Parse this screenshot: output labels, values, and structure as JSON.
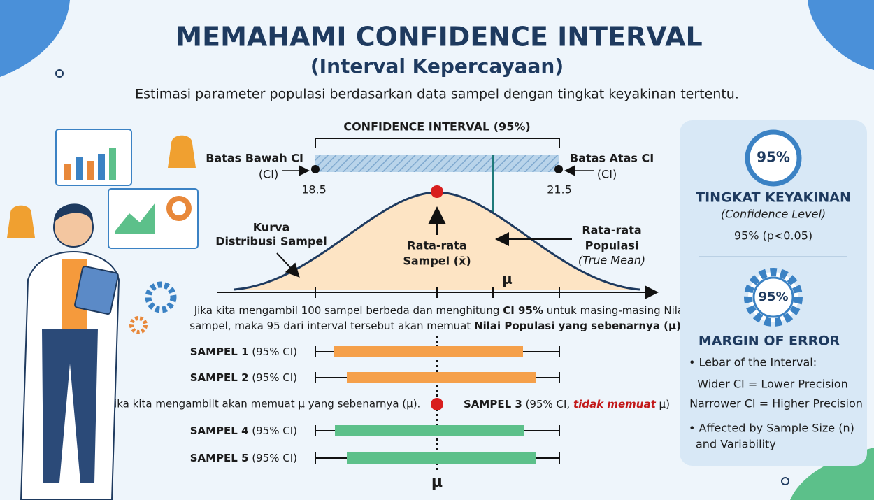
{
  "header": {
    "title": "MEMAHAMI CONFIDENCE INTERVAL",
    "subtitle": "(Interval Kepercayaan)",
    "tagline": "Estimasi parameter populasi berdasarkan data sampel dengan tingkat keyakinan tertentu."
  },
  "interval": {
    "label": "CONFIDENCE INTERVAL (95%)",
    "lower": {
      "label": "Batas Bawah CI",
      "sub": "(CI)",
      "value": "18.5"
    },
    "upper": {
      "label": "Batas Atas CI",
      "sub": "(CI)",
      "value": "21.5"
    }
  },
  "curve": {
    "label": [
      "Kurva",
      "Distribusi Sampel"
    ],
    "sample_mean": [
      "Rata-rata",
      "Sampel (x̄)"
    ],
    "population_mean": [
      "Rata-rata",
      "Populasi",
      "(True Mean)"
    ],
    "mu": "μ"
  },
  "explanation": {
    "line1": [
      "Jika kita mengambil 100 sampel berbeda dan menghitung ",
      "CI 95%",
      " untuk masing-masing Nilai"
    ],
    "line2": [
      "sampel, maka 95 dari interval tersebut akan memuat ",
      "Nilai Populasi yang sebenarnya (μ)",
      "."
    ]
  },
  "samples": [
    {
      "name": "SAMPEL 1",
      "note": "(95% CI)"
    },
    {
      "name": "SAMPEL 2",
      "note": "(95% CI)"
    },
    {
      "name": "SAMPEL 4",
      "note": "(95% CI)"
    },
    {
      "name": "SAMPEL 5",
      "note": "(95% CI)"
    }
  ],
  "miss": {
    "text": "Jika kita mengambilt akan memuat μ yang sebenarnya (μ).",
    "name": "SAMPEL 3",
    "note": [
      "(95% CI, ",
      "tidak memuat",
      " μ)"
    ]
  },
  "bottom_mu": "μ",
  "panel": {
    "badge1": "95%",
    "level_title": "TINGKAT KEYAKINAN",
    "level_sub": "(Confidence Level)",
    "level_value": "95% (p<0.05)",
    "badge2": "95%",
    "moe_title": "MARGIN OF ERROR",
    "bullets": [
      "• Lebar of the Interval:",
      "Wider CI = Lower Precision",
      "Narrower CI = Higher Precision",
      "• Affected by Sample Size (n)",
      "and Variability"
    ]
  }
}
